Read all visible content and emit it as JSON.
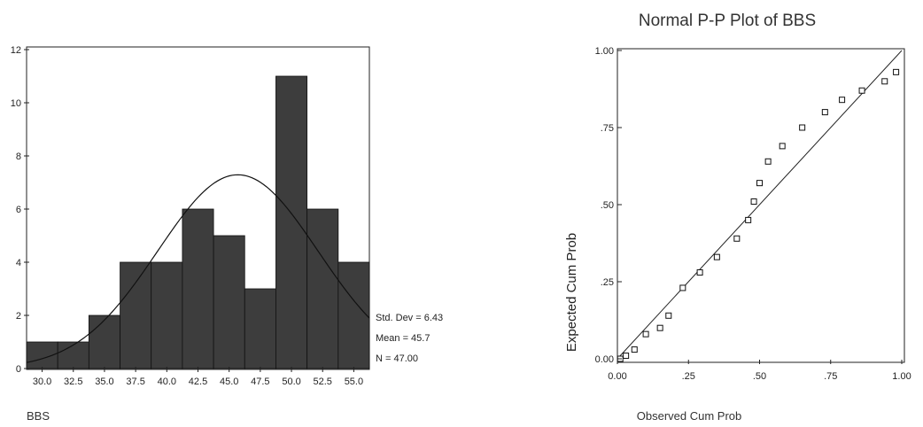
{
  "chart_data": [
    {
      "type": "bar",
      "subtype": "histogram",
      "xlabel": "BBS",
      "categories": [
        "30.0",
        "32.5",
        "35.0",
        "37.5",
        "40.0",
        "42.5",
        "45.0",
        "47.5",
        "50.0",
        "52.5",
        "55.0"
      ],
      "values": [
        1,
        1,
        2,
        4,
        4,
        6,
        5,
        3,
        11,
        6,
        4
      ],
      "y_ticks": [
        "0",
        "2",
        "4",
        "6",
        "8",
        "10",
        "12"
      ],
      "ylim": [
        0,
        12
      ],
      "bar_color": "#3d3d3d",
      "normal_curve": {
        "mean": 45.7,
        "std_dev": 6.43,
        "n": 47,
        "bin_width": 2.5
      },
      "stats": {
        "std_dev_label": "Std. Dev = 6.43",
        "mean_label": "Mean = 45.7",
        "n_label": "N = 47.00"
      }
    },
    {
      "type": "scatter",
      "subtype": "p-p plot",
      "title": "Normal P-P Plot of BBS",
      "xlabel": "Observed Cum Prob",
      "ylabel": "Expected Cum Prob",
      "xlim": [
        0,
        1
      ],
      "ylim": [
        0,
        1
      ],
      "x_ticks": [
        "0.00",
        ".25",
        ".50",
        ".75",
        "1.00"
      ],
      "y_ticks": [
        "0.00",
        ".25",
        ".50",
        ".75",
        "1.00"
      ],
      "reference_line": "y = x",
      "points": [
        [
          0.01,
          0.0
        ],
        [
          0.03,
          0.01
        ],
        [
          0.06,
          0.03
        ],
        [
          0.1,
          0.08
        ],
        [
          0.15,
          0.1
        ],
        [
          0.18,
          0.14
        ],
        [
          0.23,
          0.23
        ],
        [
          0.29,
          0.28
        ],
        [
          0.35,
          0.33
        ],
        [
          0.42,
          0.39
        ],
        [
          0.46,
          0.45
        ],
        [
          0.48,
          0.51
        ],
        [
          0.5,
          0.57
        ],
        [
          0.53,
          0.64
        ],
        [
          0.58,
          0.69
        ],
        [
          0.65,
          0.75
        ],
        [
          0.73,
          0.8
        ],
        [
          0.79,
          0.84
        ],
        [
          0.86,
          0.87
        ],
        [
          0.94,
          0.9
        ],
        [
          0.98,
          0.93
        ]
      ]
    }
  ]
}
